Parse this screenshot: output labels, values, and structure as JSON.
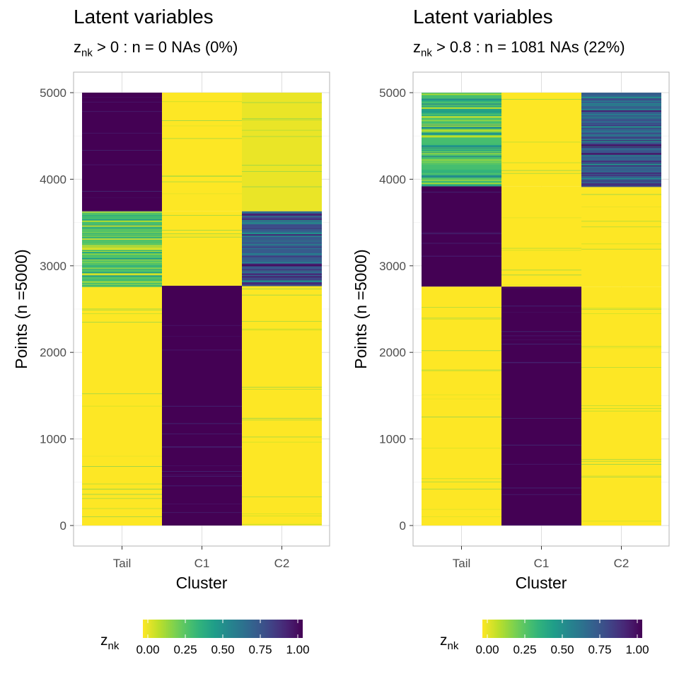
{
  "chart_data": [
    {
      "type": "heatmap",
      "title": "Latent variables",
      "subtitle": {
        "var": "z",
        "var_sub": "nk",
        "rest": " > 0 : n = 0  NAs (0%)"
      },
      "xlabel": "Cluster",
      "ylabel": "Points (n =5000)",
      "categories": [
        "Tail",
        "C1",
        "C2"
      ],
      "ylim": [
        0,
        5000
      ],
      "yticks": [
        "0",
        "1000",
        "2000",
        "3000",
        "4000",
        "5000"
      ],
      "grid": true,
      "legend": {
        "title_var": "z",
        "title_sub": "nk",
        "placement": "bottom",
        "ticks": [
          "0.00",
          "0.25",
          "0.50",
          "0.75",
          "1.00"
        ]
      },
      "segments": [
        {
          "from": 0,
          "to": 2770,
          "values": [
            0.0,
            1.0,
            0.0
          ]
        },
        {
          "from": 2770,
          "to": 3630,
          "values": [
            0.28,
            0.0,
            0.72
          ]
        },
        {
          "from": 3630,
          "to": 5000,
          "values": [
            1.0,
            0.0,
            0.03
          ]
        }
      ]
    },
    {
      "type": "heatmap",
      "title": "Latent variables",
      "subtitle": {
        "var": "z",
        "var_sub": "nk",
        "rest": " > 0.8 : n = 1081  NAs (22%)"
      },
      "xlabel": "Cluster",
      "ylabel": "Points (n =5000)",
      "categories": [
        "Tail",
        "C1",
        "C2"
      ],
      "ylim": [
        0,
        5000
      ],
      "yticks": [
        "0",
        "1000",
        "2000",
        "3000",
        "4000",
        "5000"
      ],
      "grid": true,
      "legend": {
        "title_var": "z",
        "title_sub": "nk",
        "placement": "bottom",
        "ticks": [
          "0.00",
          "0.25",
          "0.50",
          "0.75",
          "1.00"
        ]
      },
      "segments": [
        {
          "from": 0,
          "to": 2760,
          "values": [
            0.0,
            1.0,
            0.0
          ]
        },
        {
          "from": 2760,
          "to": 3920,
          "values": [
            1.0,
            0.0,
            0.0
          ]
        },
        {
          "from": 3920,
          "to": 5000,
          "values": [
            0.3,
            0.0,
            0.7
          ]
        }
      ]
    }
  ]
}
